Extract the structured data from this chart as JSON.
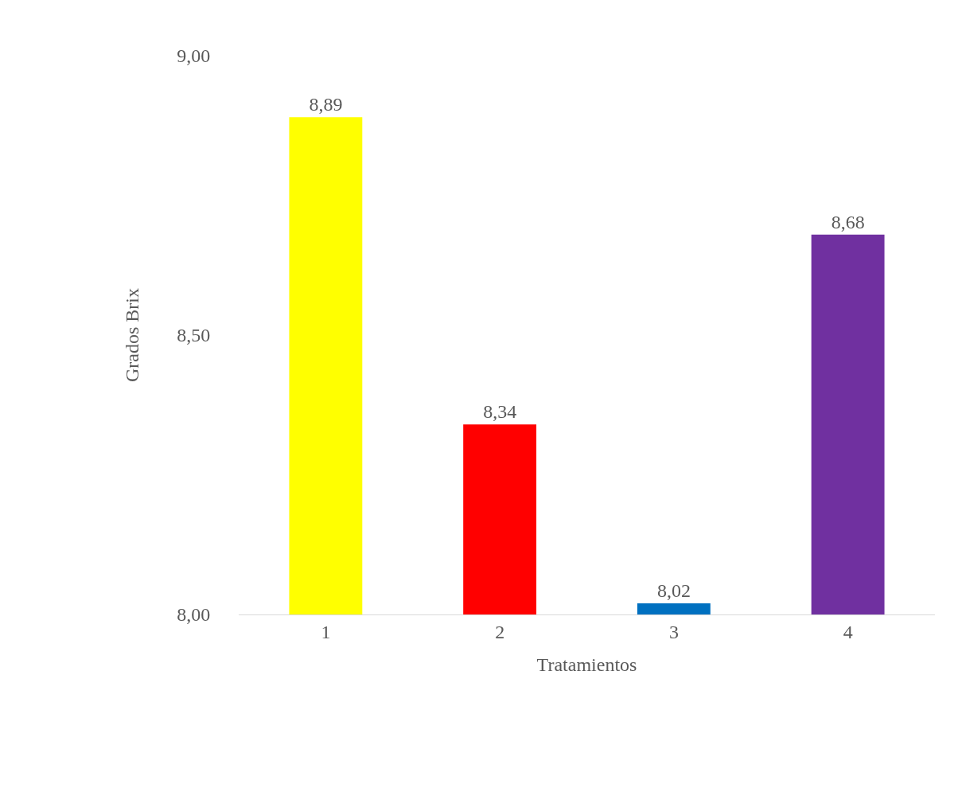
{
  "chart_data": {
    "type": "bar",
    "xlabel": "Tratamientos",
    "ylabel": "Grados Brix",
    "categories": [
      "1",
      "2",
      "3",
      "4"
    ],
    "values": [
      8.89,
      8.34,
      8.02,
      8.68
    ],
    "colors": [
      "#ffff00",
      "#ff0000",
      "#0070c0",
      "#7030a0"
    ],
    "value_labels": [
      "8,89",
      "8,34",
      "8,02",
      "8,68"
    ],
    "ylim": [
      8.0,
      9.0
    ],
    "yticks": [
      {
        "value": 8.0,
        "label": "8,00"
      },
      {
        "value": 8.5,
        "label": "8,50"
      },
      {
        "value": 9.0,
        "label": "9,00"
      }
    ],
    "grid": false
  }
}
